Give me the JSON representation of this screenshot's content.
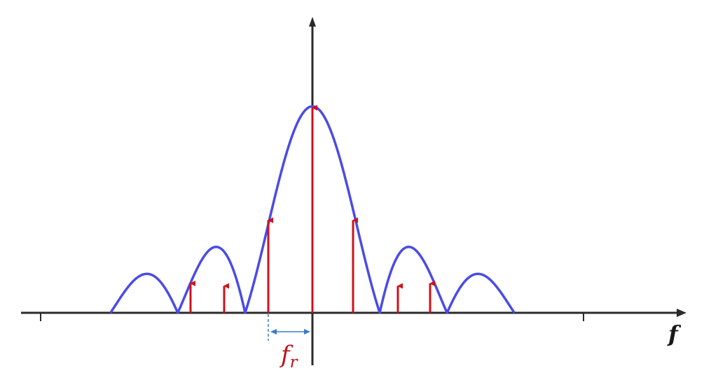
{
  "diagram": {
    "axis_label_f": "f",
    "spacing_label_main": "f",
    "spacing_label_sub": "r",
    "colors": {
      "axis": "#2b2b2b",
      "envelope": "#4b4be6",
      "impulse": "#d0101a",
      "spacing_marker": "#3b7ac8",
      "label": "#c0101a"
    },
    "envelope": {
      "function": "|sinc(f)|",
      "main_lobe_width_in_spacings": 3.1
    },
    "impulses": [
      {
        "k": -3,
        "height": 0.149
      },
      {
        "k": -2,
        "height": 0.137
      },
      {
        "k": -1,
        "height": 0.455
      },
      {
        "k": 0,
        "height": 1.0
      },
      {
        "k": 1,
        "height": 0.455
      },
      {
        "k": 2,
        "height": 0.137
      },
      {
        "k": 3,
        "height": 0.149
      }
    ]
  }
}
